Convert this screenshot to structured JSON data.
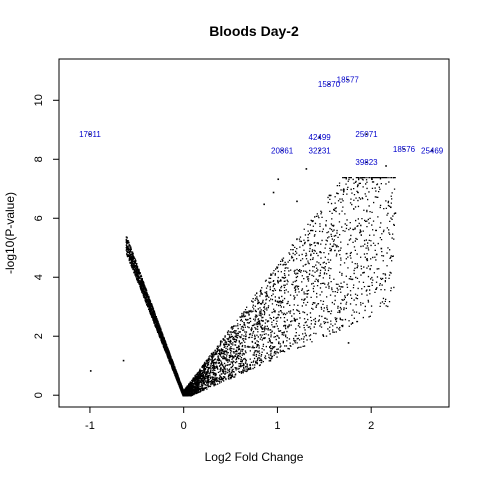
{
  "chart_data": {
    "type": "scatter",
    "title": "Bloods Day-2",
    "xlabel": "Log2 Fold Change",
    "ylabel": "-log10(P-value)",
    "xlim": [
      -1.33,
      2.83
    ],
    "ylim": [
      -0.4,
      11.4
    ],
    "xticks": [
      -1,
      0,
      1,
      2
    ],
    "yticks": [
      0,
      2,
      4,
      6,
      8,
      10
    ],
    "grid": false,
    "legend": "none",
    "point_color": "#000000",
    "label_color": "#0000cc",
    "labeled_points": [
      {
        "label": "17011",
        "x": -1.0,
        "y": 8.85
      },
      {
        "label": "15870",
        "x": 1.55,
        "y": 10.55
      },
      {
        "label": "18577",
        "x": 1.75,
        "y": 10.7
      },
      {
        "label": "42499",
        "x": 1.45,
        "y": 8.75
      },
      {
        "label": "20861",
        "x": 1.05,
        "y": 8.3
      },
      {
        "label": "32231",
        "x": 1.45,
        "y": 8.3
      },
      {
        "label": "25071",
        "x": 1.95,
        "y": 8.85
      },
      {
        "label": "18576",
        "x": 2.35,
        "y": 8.35
      },
      {
        "label": "25469",
        "x": 2.65,
        "y": 8.3
      },
      {
        "label": "39823",
        "x": 1.95,
        "y": 7.9
      }
    ],
    "outlier_points": [
      [
        -1.0,
        0.85
      ],
      [
        -0.65,
        1.2
      ],
      [
        -0.6,
        5.2
      ],
      [
        1.0,
        7.35
      ],
      [
        1.3,
        7.7
      ],
      [
        1.7,
        7.0
      ],
      [
        1.85,
        7.15
      ],
      [
        2.0,
        7.35
      ],
      [
        2.2,
        6.4
      ],
      [
        2.25,
        6.2
      ],
      [
        2.1,
        5.0
      ],
      [
        2.05,
        4.8
      ],
      [
        1.95,
        4.6
      ],
      [
        1.75,
        1.8
      ],
      [
        0.95,
        6.9
      ],
      [
        0.85,
        6.5
      ],
      [
        1.55,
        6.8
      ],
      [
        1.2,
        6.6
      ],
      [
        2.15,
        7.8
      ],
      [
        1.6,
        6.3
      ]
    ],
    "bulk_point_count": 6000,
    "density_shape": "V-shaped cloud with vertex at (0,0); left arm rises steeply to about (-0.6, 5.2), right arm spreads widely up to about (2.2, 7.5)"
  }
}
